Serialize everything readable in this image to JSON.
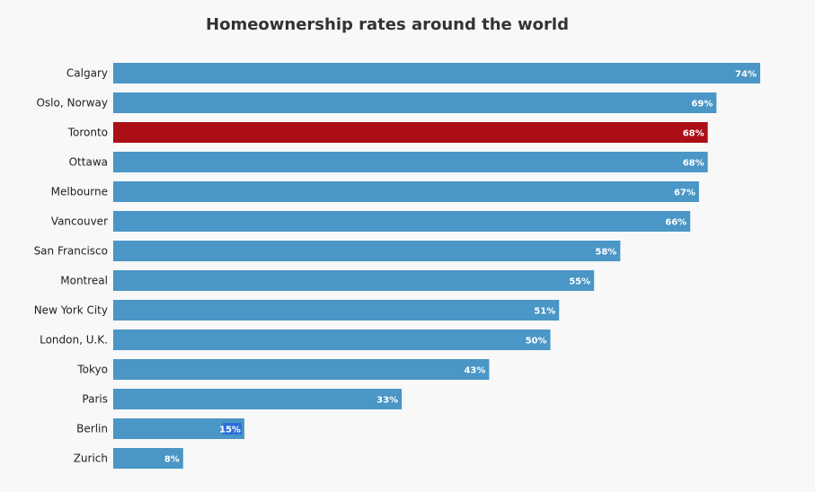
{
  "chart_data": {
    "type": "bar",
    "orientation": "horizontal",
    "title": "Homeownership rates around the world",
    "xlabel": "",
    "ylabel": "",
    "xlim": [
      0,
      100
    ],
    "grid": false,
    "legend": "none",
    "categories": [
      "Calgary",
      "Oslo, Norway",
      "Toronto",
      "Ottawa",
      "Melbourne",
      "Vancouver",
      "San Francisco",
      "Montreal",
      "New York City",
      "London, U.K.",
      "Tokyo",
      "Paris",
      "Berlin",
      "Zurich"
    ],
    "values": [
      74,
      69,
      68,
      68,
      67,
      66,
      58,
      55,
      51,
      50,
      43,
      33,
      15,
      8
    ],
    "value_labels": [
      "74%",
      "69%",
      "68%",
      "68%",
      "67%",
      "66%",
      "58%",
      "55%",
      "51%",
      "50%",
      "43%",
      "33%",
      "15%",
      "8%"
    ],
    "highlight_category": "Toronto",
    "colors": {
      "bar": "#4a96c6",
      "highlight": "#ac0e16",
      "label_highlight_bg": "#2d6fdc"
    },
    "label_highlight_category": "Berlin"
  }
}
